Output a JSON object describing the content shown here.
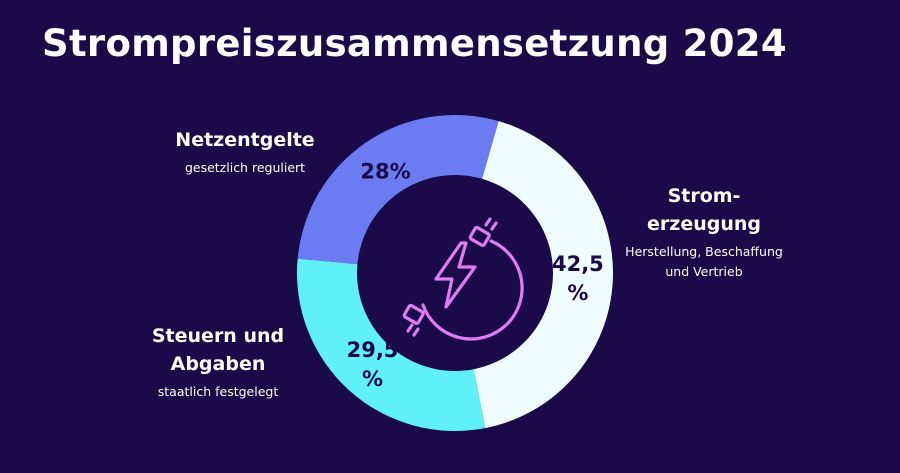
{
  "title": "Strompreiszusammensetzung 2024",
  "colors": {
    "background": "#1a0a4a",
    "hole": "#1a0a4a",
    "icon": "#e07cf0",
    "label_text": "#1a0a4a"
  },
  "icon": "plug-lightning-icon",
  "chart_data": {
    "type": "pie",
    "donut": true,
    "title": "Strompreiszusammensetzung 2024",
    "categories": [
      {
        "name": "Stromerzeugung",
        "name_lines": [
          "Strom-",
          "erzeugung"
        ],
        "subtitle_lines": [
          "Herstellung, Beschaffung",
          "und Vertrieb"
        ],
        "value": 42.5,
        "value_label_lines": [
          "42,5",
          "%"
        ],
        "color": "#eefbff"
      },
      {
        "name": "Steuern und Abgaben",
        "name_lines": [
          "Steuern und",
          "Abgaben"
        ],
        "subtitle_lines": [
          "staatlich festgelegt"
        ],
        "value": 29.5,
        "value_label_lines": [
          "29,5",
          "%"
        ],
        "color": "#5ff0f8"
      },
      {
        "name": "Netzentgelte",
        "name_lines": [
          "Netzentgelte"
        ],
        "subtitle_lines": [
          "gesetzlich reguliert"
        ],
        "value": 28,
        "value_label_lines": [
          "28%"
        ],
        "color": "#6b7cf2"
      }
    ]
  }
}
